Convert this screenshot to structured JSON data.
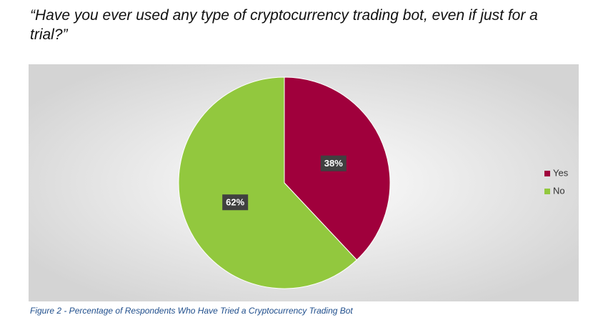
{
  "chart_data": {
    "type": "pie",
    "title": "“Have you ever used any type of cryptocurrency trading bot, even if just for a trial?”",
    "caption": "Figure 2 - Percentage of Respondents Who Have Tried a Cryptocurrency Trading Bot",
    "categories": [
      "Yes",
      "No"
    ],
    "values": [
      38,
      62
    ],
    "value_labels": [
      "38%",
      "62%"
    ],
    "colors": [
      "#a0003c",
      "#92c83e"
    ],
    "legend": "right"
  }
}
